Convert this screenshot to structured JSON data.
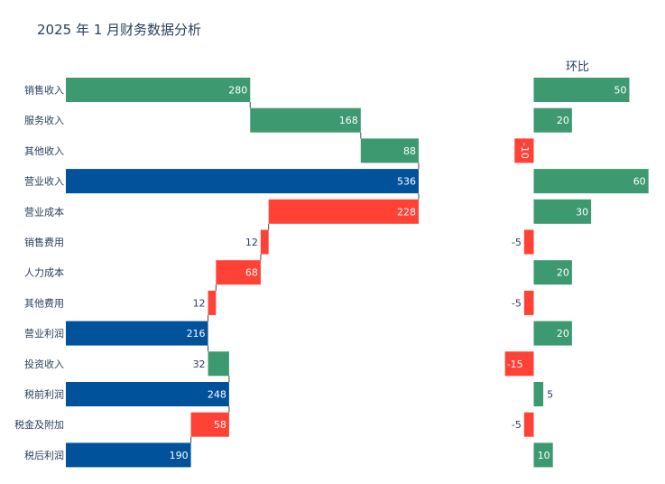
{
  "chart_data": [
    {
      "type": "bar",
      "subtype": "waterfall",
      "orientation": "horizontal",
      "title": "2025 年 1 月财务数据分析",
      "categories": [
        "销售收入",
        "服务收入",
        "其他收入",
        "营业收入",
        "营业成本",
        "销售费用",
        "人力成本",
        "其他费用",
        "营业利润",
        "投资收入",
        "税前利润",
        "税金及附加",
        "税后利润"
      ],
      "values": [
        280,
        168,
        88,
        536,
        228,
        12,
        68,
        12,
        216,
        32,
        248,
        58,
        190
      ],
      "measures": [
        "relative",
        "relative",
        "relative",
        "total",
        "relative",
        "relative",
        "relative",
        "relative",
        "total",
        "relative",
        "total",
        "relative",
        "total"
      ],
      "direction": [
        "up",
        "up",
        "up",
        "total",
        "down",
        "down",
        "down",
        "down",
        "total",
        "up",
        "total",
        "down",
        "total"
      ],
      "xlim": [
        0,
        560
      ],
      "colors": {
        "increasing": "#3d9970",
        "decreasing": "#ff4136",
        "total": "#00529b"
      },
      "grid": false
    },
    {
      "type": "bar",
      "orientation": "horizontal",
      "title": "环比",
      "categories": [
        "销售收入",
        "服务收入",
        "其他收入",
        "营业收入",
        "营业成本",
        "销售费用",
        "人力成本",
        "其他费用",
        "营业利润",
        "投资收入",
        "税前利润",
        "税金及附加",
        "税后利润"
      ],
      "values": [
        50,
        20,
        -10,
        60,
        30,
        -5,
        20,
        -5,
        20,
        -15,
        5,
        -5,
        10
      ],
      "xlim": [
        -19,
        65
      ],
      "colors": {
        "positive": "#3d9970",
        "negative": "#ff4136"
      },
      "grid": false
    }
  ]
}
